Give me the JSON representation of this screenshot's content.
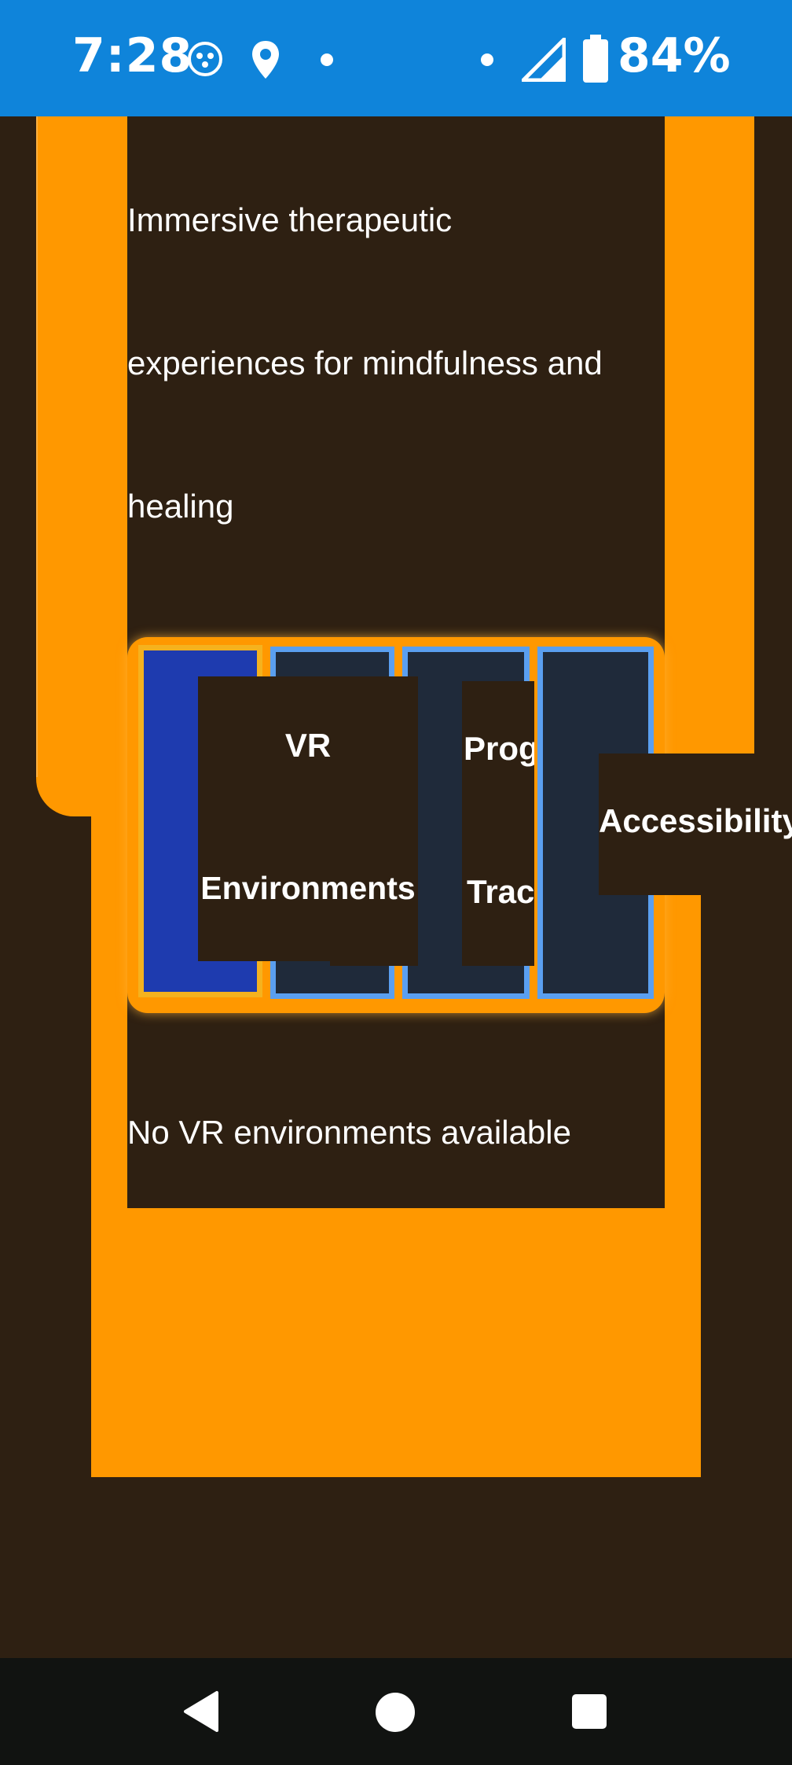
{
  "status_bar": {
    "time": "7:28",
    "battery_percent": "84%",
    "icons": [
      "face-notification-icon",
      "location-icon",
      "dot-icon",
      "dot-icon",
      "signal-icon",
      "battery-icon"
    ]
  },
  "page": {
    "description_lines": [
      "Immersive therapeutic",
      "experiences for mindfulness and",
      "healing"
    ],
    "empty_state": "No VR environments available"
  },
  "tabs": [
    {
      "label_line1": "VR",
      "label_line2": "Environments",
      "selected": true
    },
    {
      "label_line1": "Prog",
      "label_line2": "Trac",
      "selected": false
    },
    {
      "label_line1": "Accessibility",
      "selected": false
    }
  ],
  "nav_bar": {
    "icons": [
      "back-icon",
      "home-icon",
      "recents-icon"
    ]
  },
  "colors": {
    "status_bar": "#0f84da",
    "background": "#2e2012",
    "accent_orange": "#ff9800",
    "tab_selected": "#1e3baf",
    "tab_selected_border": "#f5b21e",
    "tab_border": "#5a9ff0",
    "tab_bg": "#1f2a3a",
    "nav_bar": "#111311"
  }
}
